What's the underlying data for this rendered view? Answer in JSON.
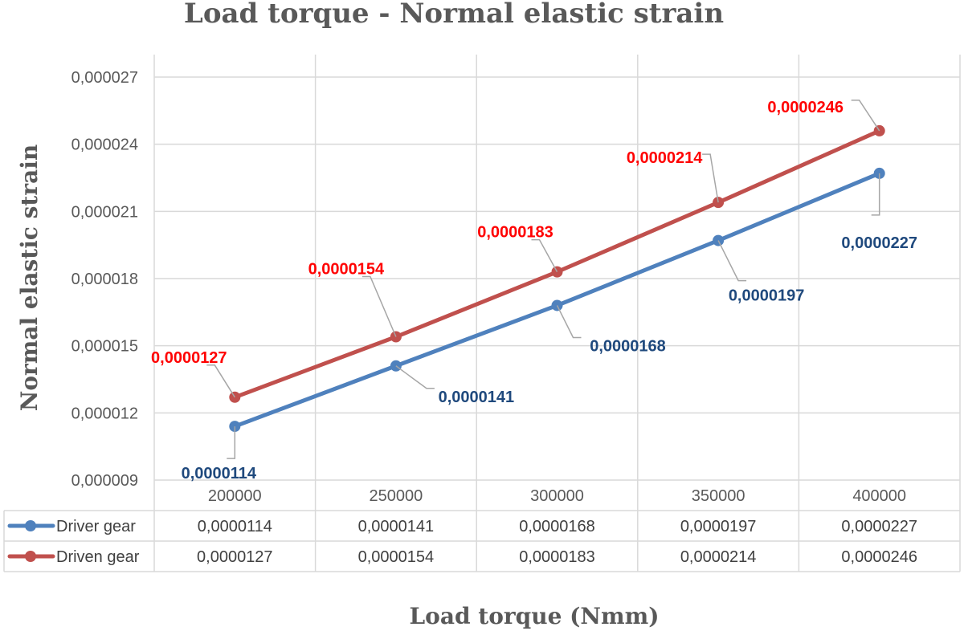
{
  "chart_data": {
    "type": "line",
    "title": "Load torque - Normal elastic strain",
    "xlabel": "Load torque (Nmm)",
    "ylabel": "Normal elastic strain",
    "categories": [
      "200000",
      "250000",
      "300000",
      "350000",
      "400000"
    ],
    "y_ticks": [
      "0,000009",
      "0,000012",
      "0,000015",
      "0,000018",
      "0,000021",
      "0,000024",
      "0,000027"
    ],
    "ylim": [
      9e-06,
      2.7e-05
    ],
    "grid": true,
    "legend": "data-table",
    "series": [
      {
        "name": "Driver gear",
        "color": "#4f81bd",
        "label_color": "#1f497d",
        "values": [
          1.14e-05,
          1.41e-05,
          1.68e-05,
          1.97e-05,
          2.27e-05
        ],
        "labels": [
          "0,0000114",
          "0,0000141",
          "0,0000168",
          "0,0000197",
          "0,0000227"
        ]
      },
      {
        "name": "Driven gear",
        "color": "#c0504d",
        "label_color": "#ff0000",
        "values": [
          1.27e-05,
          1.54e-05,
          1.83e-05,
          2.14e-05,
          2.46e-05
        ],
        "labels": [
          "0,0000127",
          "0,0000154",
          "0,0000183",
          "0,0000214",
          "0,0000246"
        ]
      }
    ]
  }
}
